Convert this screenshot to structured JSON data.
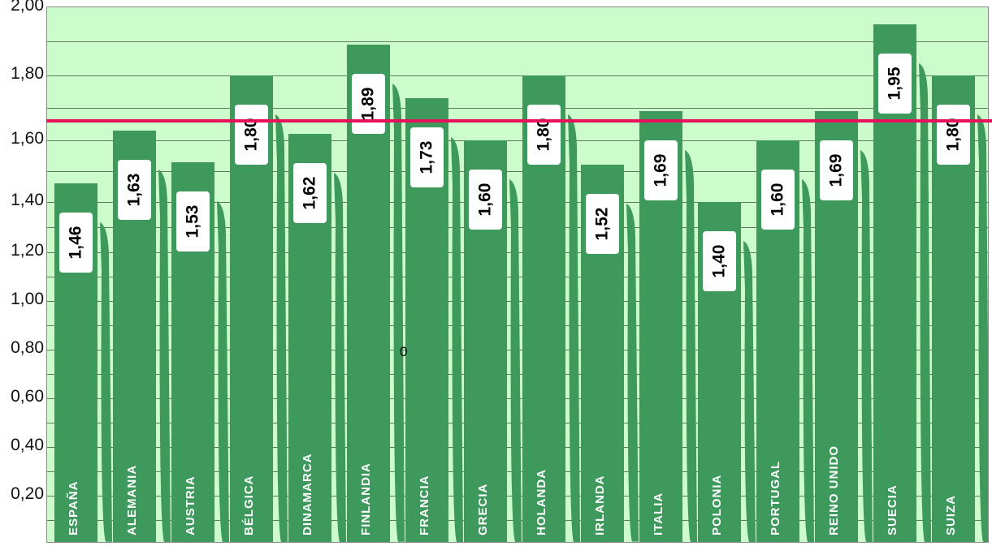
{
  "chart_data": {
    "type": "bar",
    "title": "",
    "xlabel": "",
    "ylabel": "",
    "ylim": [
      0,
      2.0
    ],
    "y_ticks": [
      "2,00",
      "1,80",
      "1,60",
      "1,40",
      "1,20",
      "1,00",
      "0,80",
      "0,60",
      "0,40",
      "0,20"
    ],
    "categories": [
      "ESPAÑA",
      "ALEMANIA",
      "AUSTRIA",
      "BÉLGICA",
      "DINAMARCA",
      "FINLANDIA",
      "FRANCIA",
      "GRECIA",
      "HOLANDA",
      "IRLANDA",
      "ITALIA",
      "POLONIA",
      "PORTUGAL",
      "REINO UNIDO",
      "SUECIA",
      "SUIZA"
    ],
    "values": [
      1.46,
      1.63,
      1.53,
      1.8,
      1.62,
      1.89,
      1.73,
      1.6,
      1.8,
      1.52,
      1.69,
      1.4,
      1.6,
      1.69,
      1.95,
      1.8
    ],
    "value_labels": [
      "1,46",
      "1,63",
      "1,53",
      "1,80",
      "1,62",
      "1,89",
      "1,73",
      "1,60",
      "1,80",
      "1,52",
      "1,69",
      "1,40",
      "1,60",
      "1,69",
      "1,95",
      "1,80"
    ],
    "reference_line": {
      "value": 1.66,
      "color": "#e8105a"
    },
    "grid": true,
    "legend": null,
    "annotations": [
      "0"
    ]
  },
  "colors": {
    "background": "#ccfccc",
    "bar": "#3e9a5c",
    "reference_line": "#e8105a",
    "label_box": "#ffffff"
  }
}
